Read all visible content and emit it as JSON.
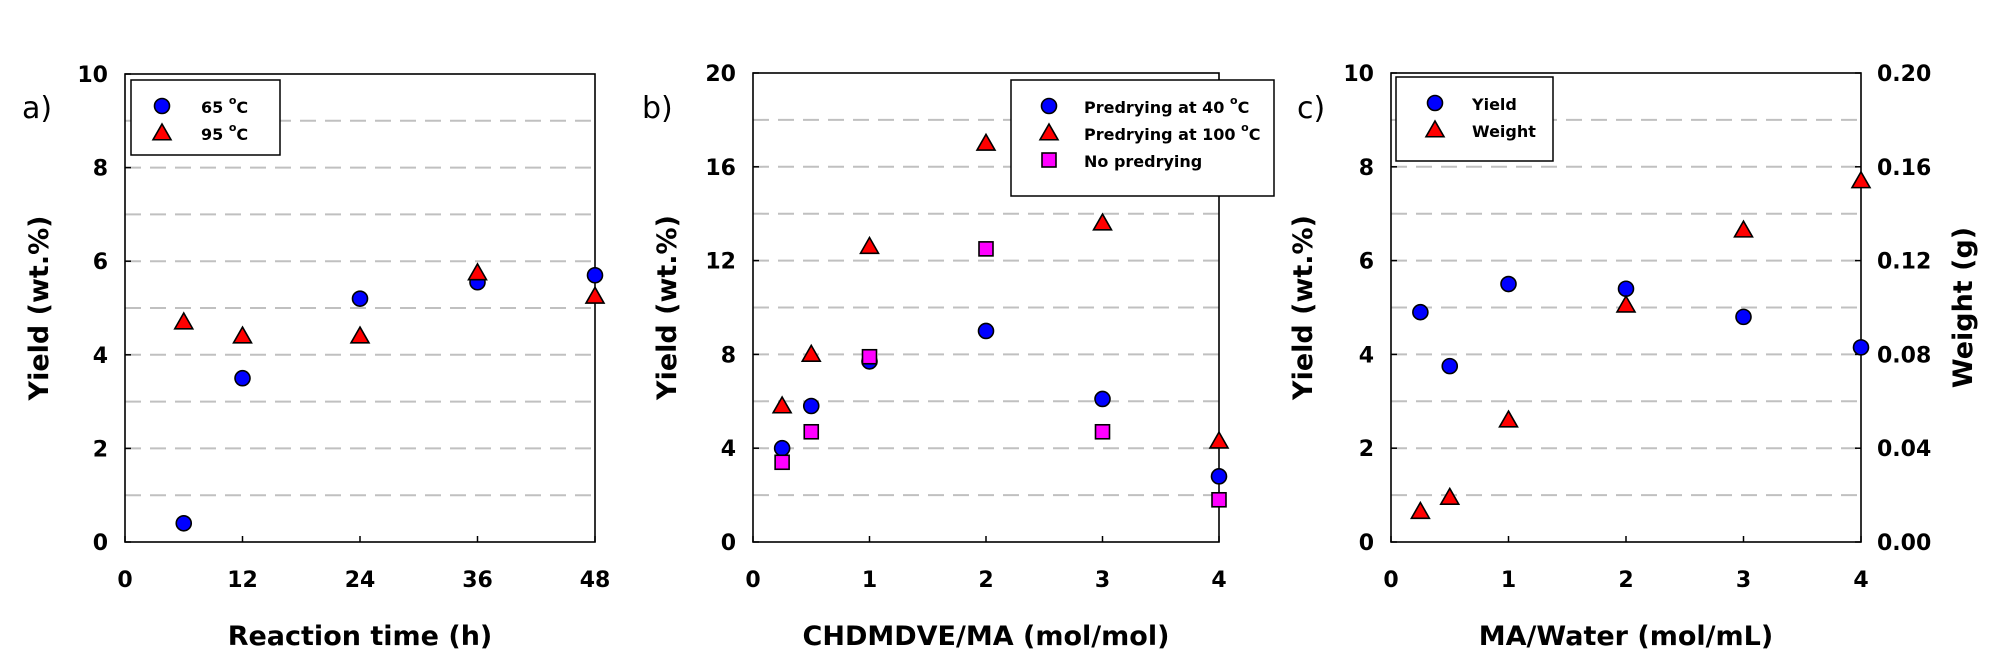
{
  "chart_data": [
    {
      "type": "scatter",
      "panel_label": "a)",
      "title": "",
      "xlabel": "Reaction time (h)",
      "ylabel": "Yield (wt.%)",
      "xlim": [
        0,
        48
      ],
      "ylim": [
        0,
        10
      ],
      "xticks": [
        0,
        12,
        24,
        36,
        48
      ],
      "xtick_labels": [
        "0",
        "12",
        "24",
        "36",
        "48"
      ],
      "yticks": [
        0,
        2,
        4,
        6,
        8,
        10
      ],
      "ytick_labels": [
        "0",
        "2",
        "4",
        "6",
        "8",
        "10"
      ],
      "grid": {
        "axis": "y",
        "step": 1,
        "style": "dashed"
      },
      "legend_position": "top-left",
      "series": [
        {
          "name": "65 °C",
          "name_base": "65 ",
          "name_sup": "o",
          "name_tail": "C",
          "marker": "circle",
          "color": "#0000ff",
          "x": [
            6,
            12,
            24,
            36,
            48
          ],
          "y": [
            0.4,
            3.5,
            5.2,
            5.55,
            5.7
          ]
        },
        {
          "name": "95 °C",
          "name_base": "95 ",
          "name_sup": "o",
          "name_tail": "C",
          "marker": "triangle",
          "color": "#ff0000",
          "x": [
            6,
            12,
            24,
            36,
            48
          ],
          "y": [
            4.7,
            4.4,
            4.4,
            5.75,
            5.25
          ]
        }
      ]
    },
    {
      "type": "scatter",
      "panel_label": "b)",
      "title": "",
      "xlabel": "CHDMDVE/MA (mol/mol)",
      "ylabel": "Yield (wt.%)",
      "xlim": [
        0,
        4
      ],
      "ylim": [
        0,
        20
      ],
      "xticks": [
        0,
        1,
        2,
        3,
        4
      ],
      "xtick_labels": [
        "0",
        "1",
        "2",
        "3",
        "4"
      ],
      "yticks": [
        0,
        4,
        8,
        12,
        16,
        20
      ],
      "ytick_labels": [
        "0",
        "4",
        "8",
        "12",
        "16",
        "20"
      ],
      "grid": {
        "axis": "y",
        "step": 2,
        "style": "dashed"
      },
      "legend_position": "top-right",
      "series": [
        {
          "name": "Predrying at 40 °C",
          "name_base": "Predrying at 40 ",
          "name_sup": "o",
          "name_tail": "C",
          "marker": "circle",
          "color": "#0000ff",
          "x": [
            0.25,
            0.5,
            1,
            2,
            3,
            4
          ],
          "y": [
            4.0,
            5.8,
            7.7,
            9.0,
            6.1,
            2.8
          ]
        },
        {
          "name": "Predrying at 100 °C",
          "name_base": "Predrying at 100 ",
          "name_sup": "o",
          "name_tail": "C",
          "marker": "triangle",
          "color": "#ff0000",
          "x": [
            0.25,
            0.5,
            1,
            2,
            3,
            4
          ],
          "y": [
            5.8,
            8.0,
            12.6,
            17.0,
            13.6,
            4.3
          ]
        },
        {
          "name": "No predrying",
          "name_base": "No predrying",
          "name_sup": "",
          "name_tail": "",
          "marker": "square",
          "color": "#ff00ff",
          "x": [
            0.25,
            0.5,
            1,
            2,
            3,
            4
          ],
          "y": [
            3.4,
            4.7,
            7.9,
            12.5,
            4.7,
            1.8
          ]
        }
      ]
    },
    {
      "type": "scatter",
      "panel_label": "c)",
      "title": "",
      "xlabel": "MA/Water (mol/mL)",
      "ylabel": "Yield (wt.%)",
      "y2label": "Weight (g)",
      "xlim": [
        0,
        4
      ],
      "ylim": [
        0,
        10
      ],
      "y2lim": [
        0,
        0.2
      ],
      "xticks": [
        0,
        1,
        2,
        3,
        4
      ],
      "xtick_labels": [
        "0",
        "1",
        "2",
        "3",
        "4"
      ],
      "yticks": [
        0,
        2,
        4,
        6,
        8,
        10
      ],
      "ytick_labels": [
        "0",
        "2",
        "4",
        "6",
        "8",
        "10"
      ],
      "y2ticks": [
        0,
        0.04,
        0.08,
        0.12,
        0.16,
        0.2
      ],
      "y2tick_labels": [
        "0.00",
        "0.04",
        "0.08",
        "0.12",
        "0.16",
        "0.20"
      ],
      "grid": {
        "axis": "y",
        "step": 1,
        "style": "dashed"
      },
      "legend_position": "top-left",
      "series": [
        {
          "name": "Yield",
          "name_base": "Yield",
          "name_sup": "",
          "name_tail": "",
          "marker": "circle",
          "color": "#0000ff",
          "axis": "left",
          "x": [
            0.25,
            0.5,
            1,
            2,
            3,
            4
          ],
          "y": [
            4.9,
            3.75,
            5.5,
            5.4,
            4.8,
            4.15
          ]
        },
        {
          "name": "Weight",
          "name_base": "Weight",
          "name_sup": "",
          "name_tail": "",
          "marker": "triangle",
          "color": "#ff0000",
          "axis": "right",
          "x": [
            0.25,
            0.5,
            1,
            2,
            3,
            4
          ],
          "y": [
            0.013,
            0.019,
            0.052,
            0.101,
            0.133,
            0.154
          ]
        }
      ]
    }
  ]
}
